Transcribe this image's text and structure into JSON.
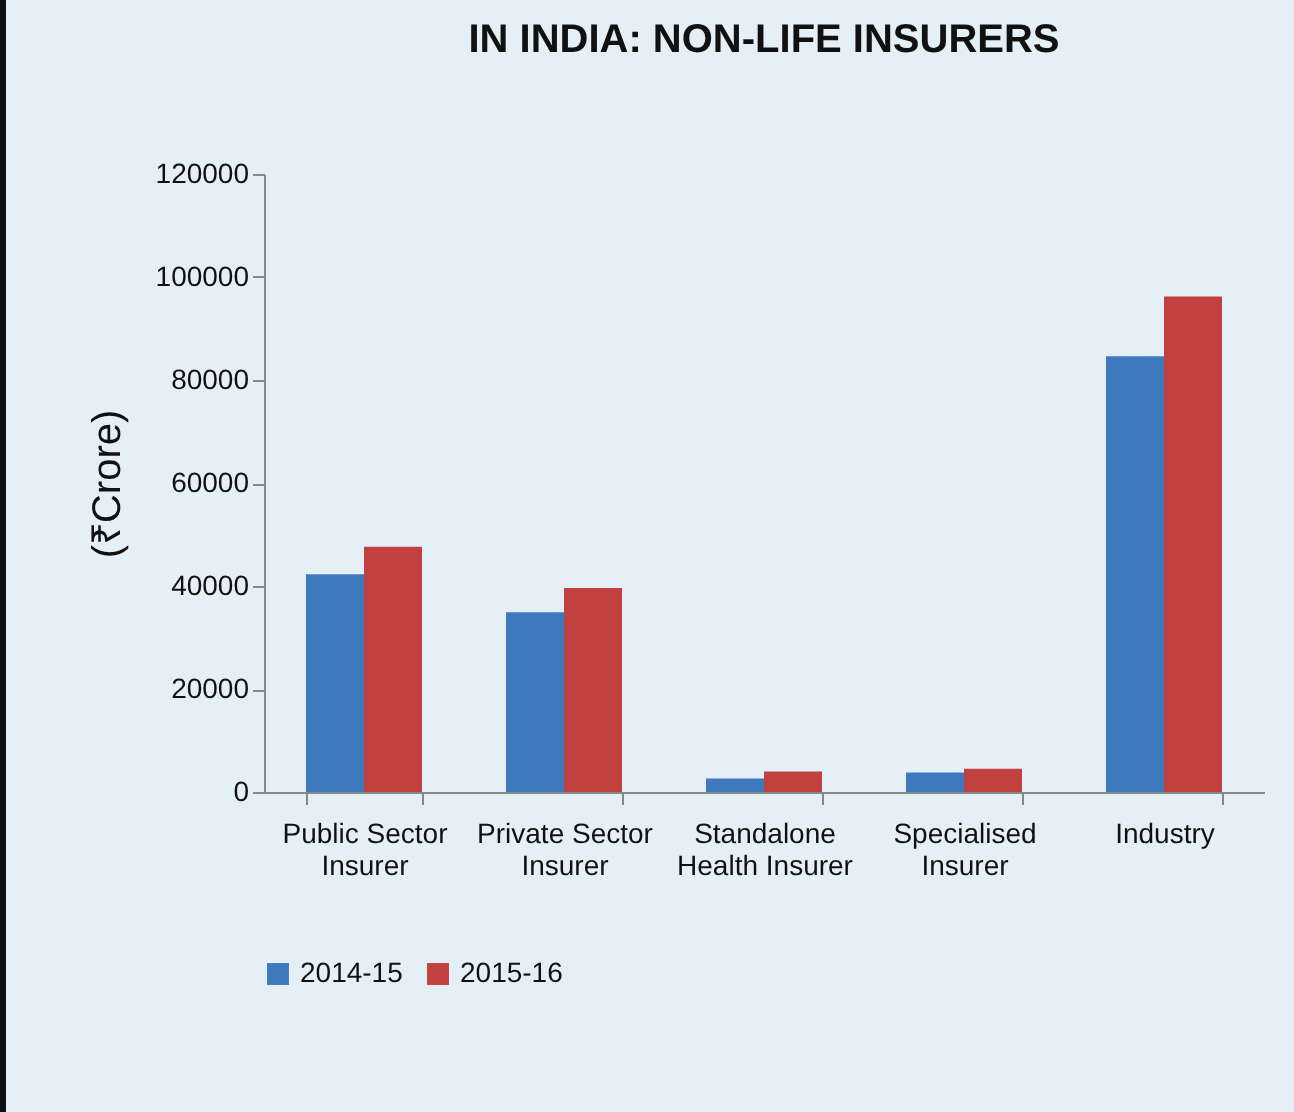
{
  "chart_data": {
    "type": "bar",
    "title": "IN INDIA: NON-LIFE INSURERS",
    "ylabel": "(₹Crore)",
    "categories": [
      "Public Sector Insurer",
      "Private Sector Insurer",
      "Standalone Health Insurer",
      "Specialised Insurer",
      "Industry"
    ],
    "series": [
      {
        "name": "2014-15",
        "color": "#3f7abf",
        "values": [
          42300,
          34900,
          2600,
          3800,
          84600
        ]
      },
      {
        "name": "2015-16",
        "color": "#c0413f",
        "values": [
          47600,
          39600,
          4000,
          4500,
          96200
        ]
      }
    ],
    "ylim": [
      0,
      120000
    ],
    "yticks": [
      0,
      20000,
      40000,
      60000,
      80000,
      100000,
      120000
    ],
    "grid": false,
    "legend": "bottom"
  }
}
